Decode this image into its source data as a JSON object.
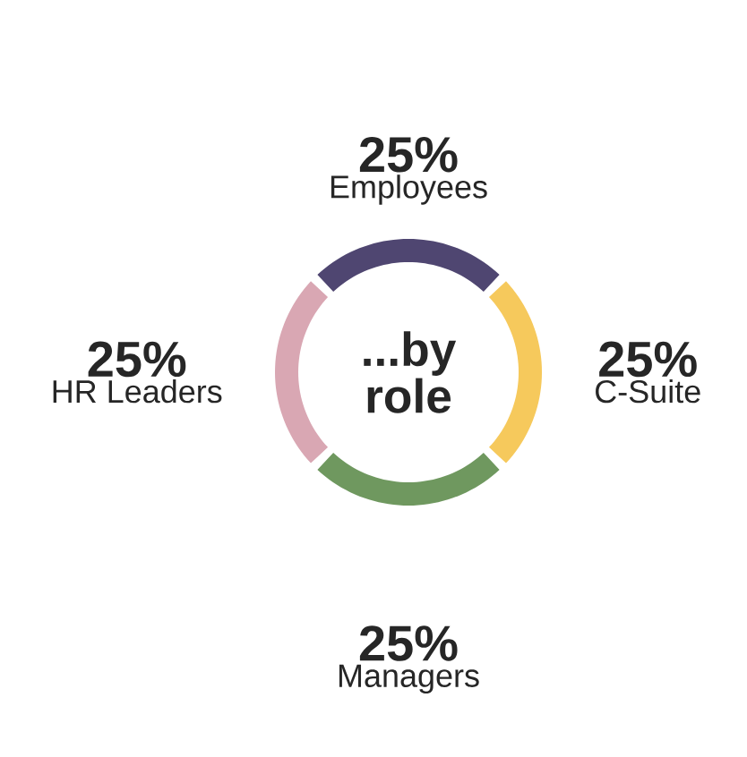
{
  "chart_data": {
    "type": "donut",
    "title": "...by role",
    "categories": [
      "Employees",
      "C-Suite",
      "Managers",
      "HR Leaders"
    ],
    "values": [
      25,
      25,
      25,
      25
    ],
    "value_labels": [
      "25%",
      "25%",
      "25%",
      "25%"
    ],
    "colors": [
      "#4f4671",
      "#f6c95c",
      "#6f985f",
      "#d9a7b3"
    ]
  }
}
